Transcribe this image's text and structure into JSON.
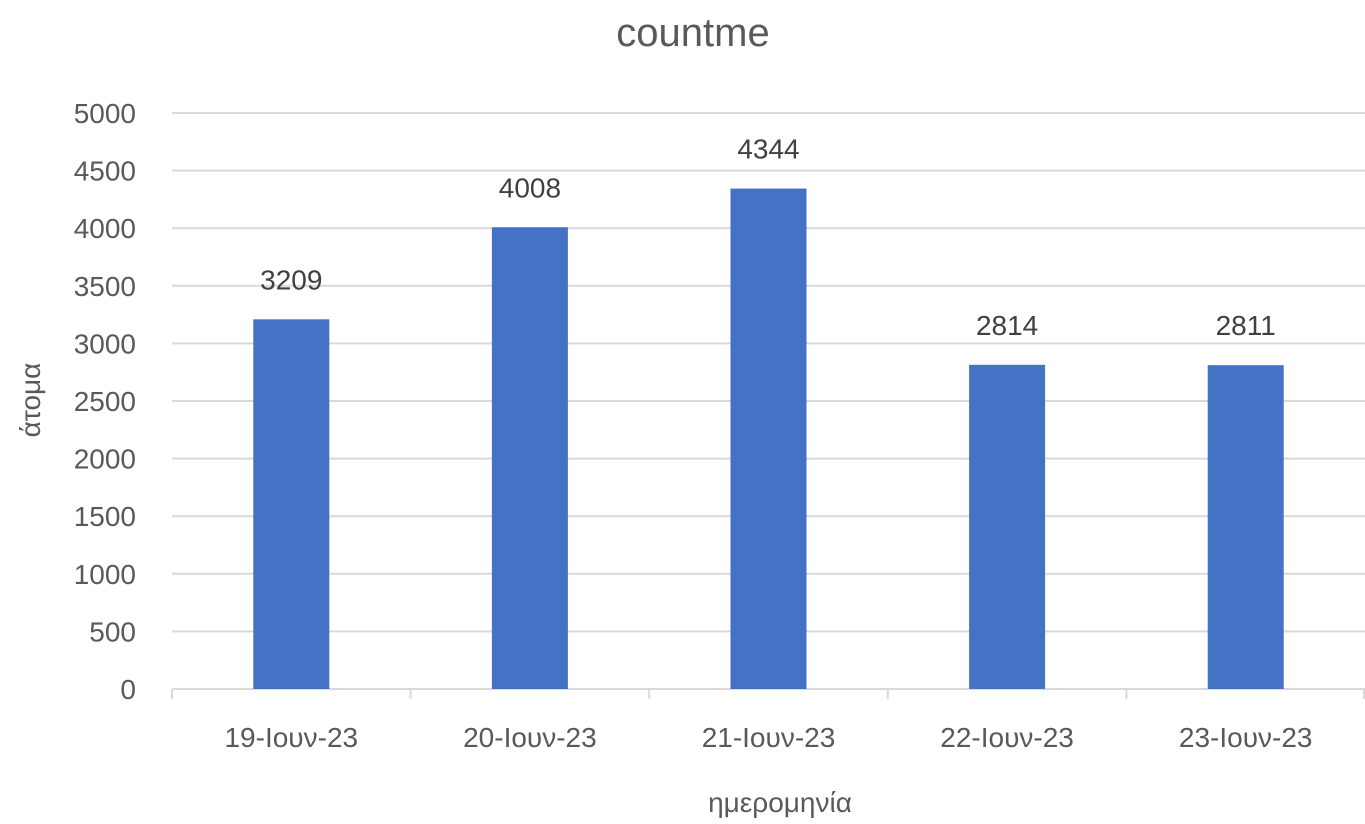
{
  "chart_data": {
    "type": "bar",
    "title": "countme",
    "xlabel": "ημερομηνία",
    "ylabel": "άτομα",
    "categories": [
      "19-Ιουν-23",
      "20-Ιουν-23",
      "21-Ιουν-23",
      "22-Ιουν-23",
      "23-Ιουν-23"
    ],
    "values": [
      3209,
      4008,
      4344,
      2814,
      2811
    ],
    "data_labels": [
      "3209",
      "4008",
      "4344",
      "2814",
      "2811"
    ],
    "ylim": [
      0,
      5000
    ],
    "yticks": [
      "0",
      "500",
      "1000",
      "1500",
      "2000",
      "2500",
      "3000",
      "3500",
      "4000",
      "4500",
      "5000"
    ],
    "grid": true,
    "legend": "none",
    "bar_color": "#4472c4"
  }
}
